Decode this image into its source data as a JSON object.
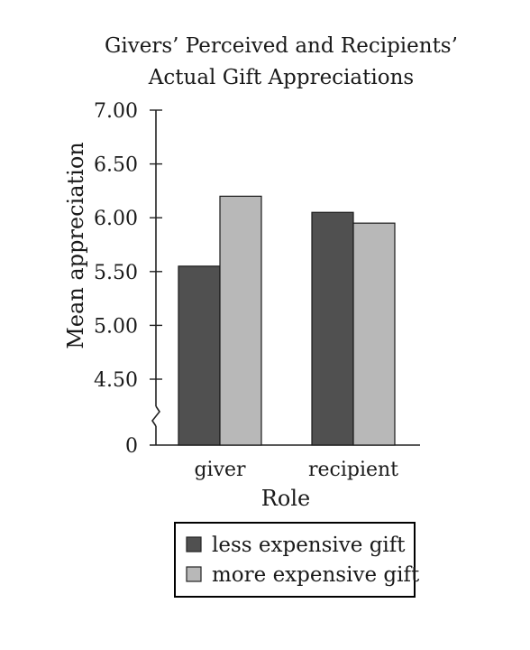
{
  "chart_data": {
    "type": "bar",
    "title_lines": [
      "Givers’ Perceived and Recipients’",
      "Actual Gift Appreciations"
    ],
    "xlabel": "Role",
    "ylabel": "Mean appreciation",
    "categories": [
      "giver",
      "recipient"
    ],
    "series": [
      {
        "name": "less expensive gift",
        "values": [
          5.55,
          6.05
        ],
        "color": "#505050"
      },
      {
        "name": "more expensive gift",
        "values": [
          6.2,
          5.95
        ],
        "color": "#b8b8b8"
      }
    ],
    "ylim": [
      4.5,
      7.0
    ],
    "y_ticks": [
      "7.00",
      "6.50",
      "6.00",
      "5.50",
      "5.00",
      "4.50",
      "0"
    ],
    "axis_break": true,
    "grid": false,
    "legend_position": "bottom"
  }
}
